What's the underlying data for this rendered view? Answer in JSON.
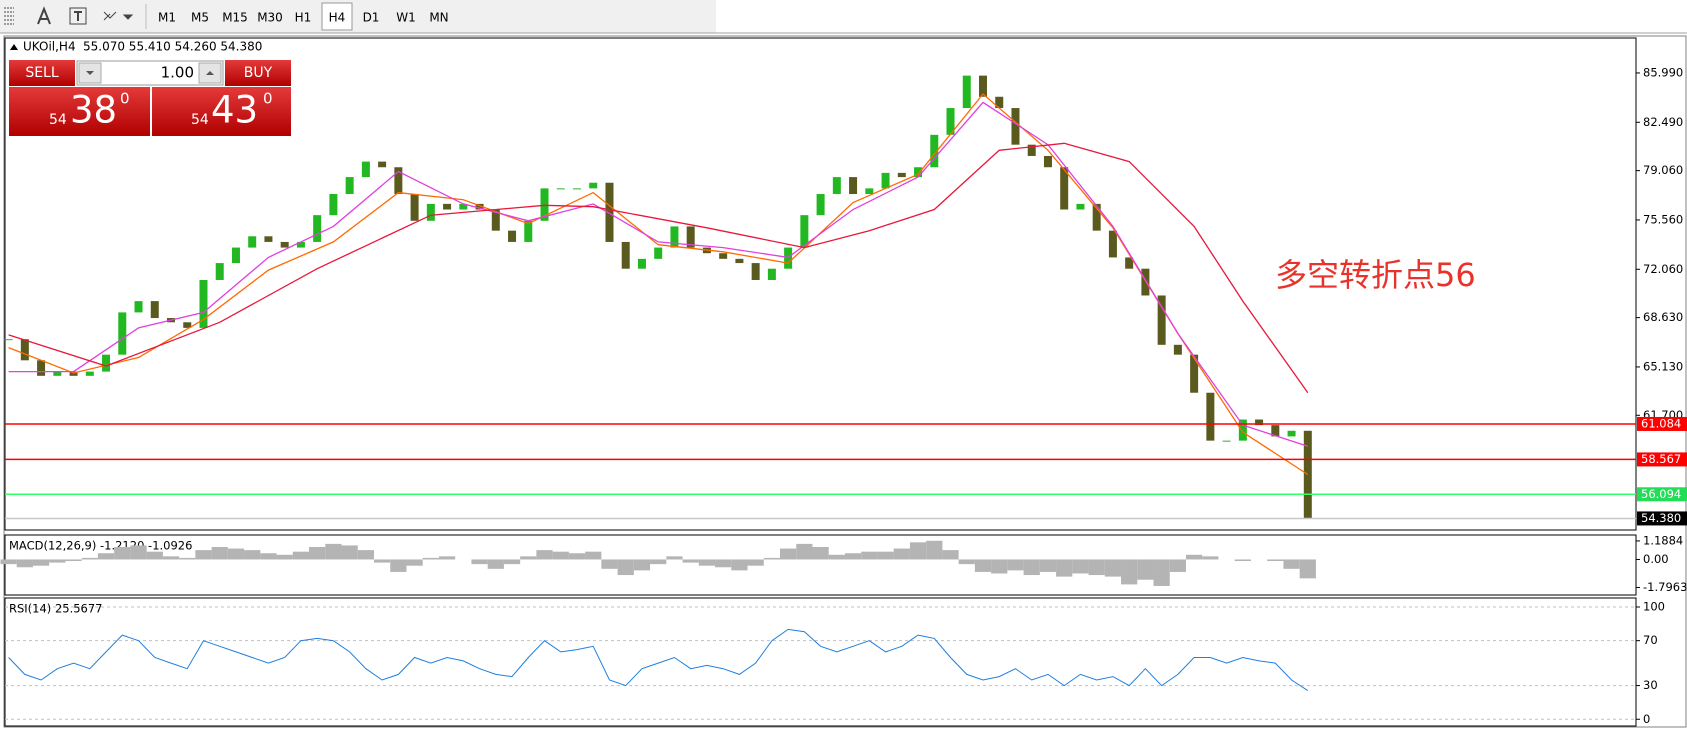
{
  "toolbar": {
    "timeframes": [
      "M1",
      "M5",
      "M15",
      "M30",
      "H1",
      "H4",
      "D1",
      "W1",
      "MN"
    ],
    "active": "H4"
  },
  "chart_header": {
    "symbol": "UKOil,H4",
    "ohlc": "55.070 55.410 54.260 54.380"
  },
  "trade_panel": {
    "sell": "SELL",
    "buy": "BUY",
    "volume": "1.00",
    "sell_price": {
      "big": "54",
      "main": "38",
      "small": "0"
    },
    "buy_price": {
      "big": "54",
      "main": "43",
      "small": "0"
    }
  },
  "chart_data": [
    {
      "type": "candlestick",
      "annotation": "多空转折点56",
      "annotation_color": "#e8322b",
      "up_color": "#22b822",
      "down_color": "#5a5a1e",
      "close": [
        67.1,
        65.6,
        64.5,
        64.8,
        64.5,
        64.8,
        66.0,
        69.0,
        69.8,
        68.6,
        68.3,
        67.9,
        71.3,
        72.5,
        73.6,
        74.4,
        74.0,
        73.6,
        74.0,
        75.9,
        77.4,
        78.6,
        79.7,
        79.3,
        77.4,
        75.5,
        76.7,
        76.3,
        76.7,
        76.3,
        74.8,
        74.0,
        75.5,
        77.8,
        77.8,
        77.8,
        78.2,
        74.0,
        72.1,
        72.8,
        73.6,
        75.1,
        73.6,
        73.2,
        72.8,
        72.5,
        71.3,
        72.1,
        73.6,
        75.9,
        77.4,
        78.6,
        77.4,
        77.8,
        78.9,
        78.6,
        79.3,
        81.6,
        83.5,
        85.8,
        84.3,
        83.5,
        80.9,
        80.1,
        79.3,
        76.3,
        76.7,
        74.8,
        72.9,
        72.1,
        70.2,
        66.7,
        66.0,
        63.3,
        59.9,
        59.9,
        61.4,
        61.0,
        60.2,
        60.6,
        54.38
      ],
      "ylim": [
        53.56,
        88.47
      ],
      "yticks": [
        {
          "value": 85.99,
          "label": "85.990"
        },
        {
          "value": 82.49,
          "label": "82.490"
        },
        {
          "value": 79.06,
          "label": "79.060"
        },
        {
          "value": 75.56,
          "label": "75.560"
        },
        {
          "value": 72.06,
          "label": "72.060"
        },
        {
          "value": 68.63,
          "label": "68.630"
        },
        {
          "value": 65.13,
          "label": "65.130"
        },
        {
          "value": 61.7,
          "label": "61.700"
        }
      ],
      "moving_averages": [
        {
          "color": "#ff6a00",
          "x": [
            0,
            4,
            8,
            12,
            16,
            20,
            24,
            28,
            32,
            36,
            40,
            44,
            48,
            52,
            56,
            60,
            64,
            68,
            72,
            76,
            80
          ],
          "values": [
            66.5,
            64.7,
            65.8,
            68.5,
            72.0,
            74.0,
            77.5,
            77.0,
            75.3,
            77.5,
            73.8,
            73.3,
            72.5,
            76.8,
            78.8,
            84.5,
            80.5,
            75.0,
            67.5,
            60.5,
            57.5
          ]
        },
        {
          "color": "#e040e0",
          "x": [
            0,
            4,
            8,
            12,
            16,
            20,
            24,
            28,
            32,
            36,
            40,
            44,
            48,
            52,
            56,
            60,
            64,
            68,
            72,
            76,
            80
          ],
          "values": [
            64.8,
            64.8,
            67.9,
            69.0,
            72.9,
            75.1,
            79.0,
            76.7,
            75.5,
            76.7,
            74.0,
            73.6,
            72.9,
            76.3,
            78.6,
            83.9,
            80.9,
            75.1,
            67.5,
            61.0,
            59.5
          ]
        },
        {
          "color": "#e8173c",
          "x": [
            0,
            6,
            13,
            19,
            26,
            33,
            36,
            43,
            49,
            53,
            57,
            61,
            65,
            69,
            73,
            76,
            80
          ],
          "values": [
            67.4,
            65.2,
            68.3,
            72.1,
            75.9,
            76.6,
            76.5,
            75.0,
            73.6,
            74.8,
            76.3,
            80.5,
            81.0,
            79.7,
            75.1,
            69.8,
            63.3
          ]
        }
      ],
      "levels": [
        {
          "value": 61.084,
          "color": "#ff0000",
          "tag_color": "#ff0000"
        },
        {
          "value": 58.567,
          "color": "#ff0000",
          "tag_color": "#ff0000"
        },
        {
          "value": 56.094,
          "color": "#33ff66",
          "tag_color": "#22dd55"
        },
        {
          "value": 54.38,
          "label": "54.380",
          "color": "#c8c8c8",
          "tag_color": "#000000"
        }
      ]
    },
    {
      "type": "bar",
      "title": "MACD(12,26,9) -1.2120 -1.0926",
      "color": "#b4b4b4",
      "values": [
        -0.3,
        -0.5,
        -0.4,
        -0.2,
        -0.1,
        0.1,
        0.4,
        0.8,
        0.9,
        0.5,
        0.2,
        0.1,
        0.6,
        0.8,
        0.7,
        0.6,
        0.4,
        0.3,
        0.5,
        0.8,
        1.0,
        0.9,
        0.6,
        -0.2,
        -0.8,
        -0.4,
        0.1,
        0.2,
        0.0,
        -0.3,
        -0.6,
        -0.3,
        0.2,
        0.6,
        0.5,
        0.4,
        0.5,
        -0.6,
        -1.0,
        -0.7,
        -0.3,
        0.2,
        -0.2,
        -0.4,
        -0.5,
        -0.7,
        -0.4,
        0.1,
        0.7,
        1.0,
        0.8,
        0.3,
        0.4,
        0.5,
        0.5,
        0.7,
        1.1,
        1.2,
        0.6,
        -0.3,
        -0.8,
        -0.9,
        -0.7,
        -1.0,
        -0.8,
        -1.1,
        -0.9,
        -1.0,
        -1.1,
        -1.6,
        -1.3,
        -1.7,
        -0.8,
        0.3,
        0.2,
        0.0,
        -0.1,
        0.0,
        -0.1,
        -0.6,
        -1.212
      ],
      "ylim": [
        -2.28,
        1.57
      ],
      "yticks": [
        1.1884,
        {
          "value": 0,
          "label": "0.00"
        },
        -1.7963
      ]
    },
    {
      "type": "line",
      "title": "RSI(14) 25.5677",
      "color": "#1e7fe0",
      "grid": true,
      "values": [
        55,
        40,
        35,
        45,
        50,
        45,
        60,
        75,
        70,
        55,
        50,
        45,
        70,
        65,
        60,
        55,
        50,
        55,
        70,
        72,
        70,
        60,
        45,
        35,
        40,
        55,
        50,
        55,
        52,
        45,
        40,
        38,
        55,
        70,
        60,
        62,
        65,
        35,
        30,
        45,
        50,
        55,
        45,
        48,
        45,
        40,
        50,
        70,
        80,
        78,
        65,
        60,
        65,
        70,
        60,
        65,
        75,
        72,
        55,
        40,
        35,
        38,
        45,
        35,
        40,
        30,
        40,
        35,
        38,
        30,
        45,
        30,
        40,
        55,
        55,
        50,
        55,
        52,
        50,
        35,
        25.5677
      ],
      "ylim": [
        -6,
        108
      ],
      "yticks": [
        100,
        70,
        30,
        0
      ]
    }
  ]
}
